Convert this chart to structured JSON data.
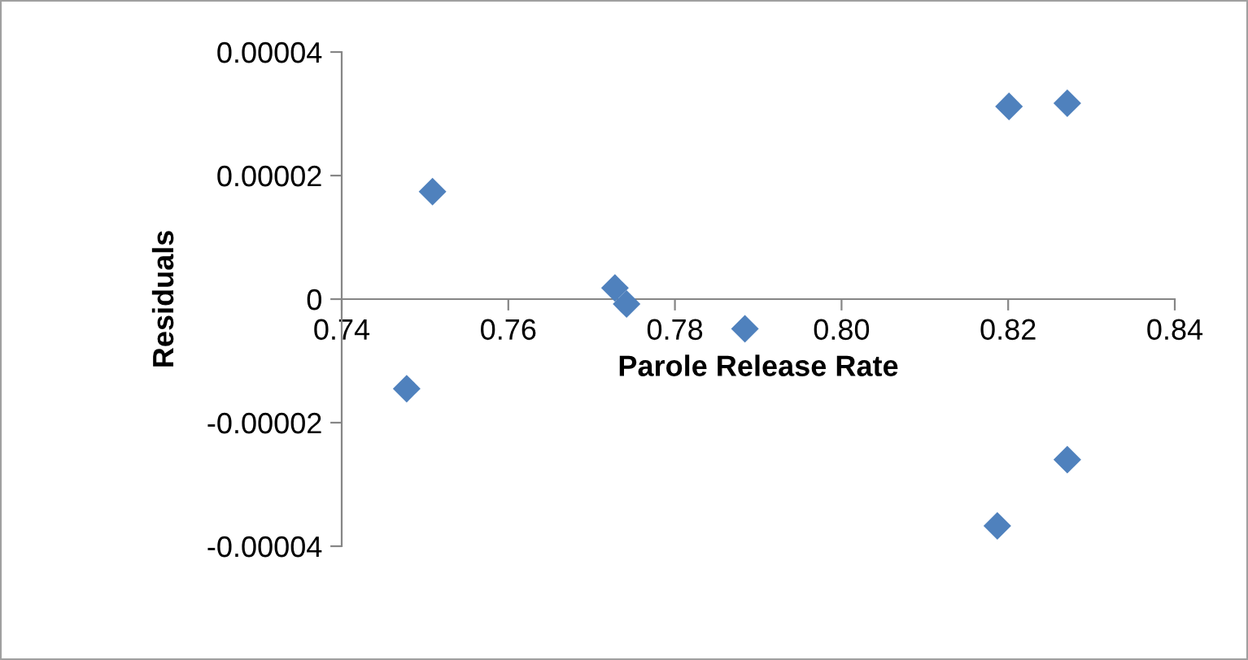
{
  "chart_data": {
    "type": "scatter",
    "xlabel": "Parole Release Rate",
    "ylabel": "Residuals",
    "x": [
      0.7478,
      0.7509,
      0.7728,
      0.7742,
      0.7884,
      0.8201,
      0.8271,
      0.8187,
      0.8271
    ],
    "series": [
      {
        "color": "#4f81bd",
        "values": [
          -1.45e-05,
          1.74e-05,
          1.8e-06,
          -8e-07,
          -4.8e-06,
          3.12e-05,
          3.17e-05,
          -3.67e-05,
          -2.6e-05
        ]
      }
    ],
    "xlim": [
      0.74,
      0.84
    ],
    "ylim": [
      -4e-05,
      4e-05
    ],
    "xticks": [
      {
        "value": 0.74,
        "label": "0.74"
      },
      {
        "value": 0.76,
        "label": "0.76"
      },
      {
        "value": 0.78,
        "label": "0.78"
      },
      {
        "value": 0.8,
        "label": "0.80"
      },
      {
        "value": 0.82,
        "label": "0.82"
      },
      {
        "value": 0.84,
        "label": "0.84"
      }
    ],
    "yticks": [
      {
        "value": -4e-05,
        "label": "-0.00004"
      },
      {
        "value": -2e-05,
        "label": "-0.00002"
      },
      {
        "value": 0,
        "label": "0"
      },
      {
        "value": 2e-05,
        "label": "0.00002"
      },
      {
        "value": 4e-05,
        "label": "0.00004"
      }
    ],
    "marker": "diamond",
    "grid": false,
    "legend": false
  }
}
